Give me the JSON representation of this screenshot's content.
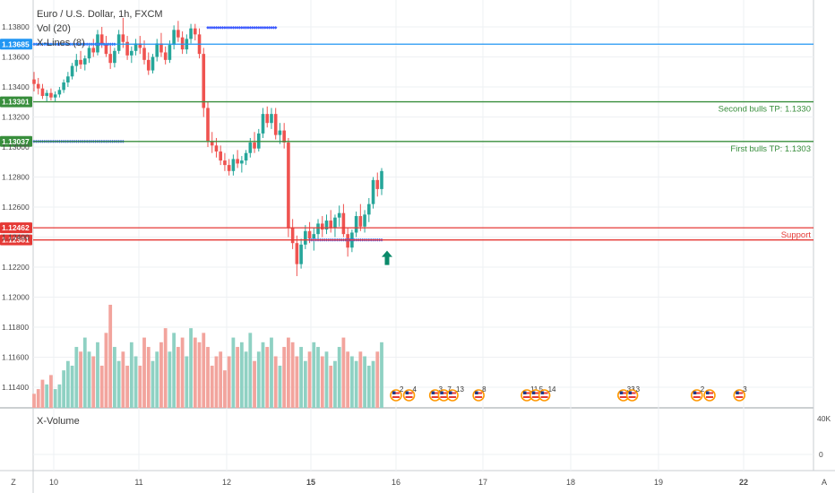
{
  "chart_data": {
    "type": "candlestick",
    "symbol_title": "Euro / U.S. Dollar, 1h, FXCM",
    "indicators": [
      "Vol (20)",
      "X-Lines (8)"
    ],
    "lower_pane_label": "X-Volume",
    "y_ticks": [
      "1.13800",
      "1.13600",
      "1.13400",
      "1.13200",
      "1.13000",
      "1.12800",
      "1.12600",
      "1.12400",
      "1.12200",
      "1.12000",
      "1.11800",
      "1.11600",
      "1.11400"
    ],
    "ylim": [
      1.1125,
      1.1387
    ],
    "lower_ticks": [
      "40K",
      "0"
    ],
    "x_ticks": [
      {
        "label": "10",
        "bold": false
      },
      {
        "label": "11",
        "bold": false
      },
      {
        "label": "12",
        "bold": false
      },
      {
        "label": "15",
        "bold": true
      },
      {
        "label": "16",
        "bold": false
      },
      {
        "label": "17",
        "bold": false
      },
      {
        "label": "18",
        "bold": false
      },
      {
        "label": "19",
        "bold": false
      },
      {
        "label": "22",
        "bold": true
      }
    ],
    "price_lines": [
      {
        "price": 1.13685,
        "badge": "1.13685",
        "color": "#2196f3",
        "label": ""
      },
      {
        "price": 1.13301,
        "badge": "1.13301",
        "color": "#388e3c",
        "label": "Second bulls TP: 1.1330"
      },
      {
        "price": 1.13037,
        "badge": "1.13037",
        "color": "#388e3c",
        "label": "First bulls TP: 1.1303"
      },
      {
        "price": 1.12462,
        "badge": "1.12462",
        "color": "#e53935",
        "label": "Support"
      },
      {
        "price": 1.12381,
        "badge": "1.12381",
        "color": "#e53935",
        "label": ""
      }
    ],
    "candles": [
      [
        1.1345,
        1.135,
        1.1337,
        1.1342
      ],
      [
        1.1342,
        1.1346,
        1.1335,
        1.1339
      ],
      [
        1.1339,
        1.1342,
        1.1332,
        1.1334
      ],
      [
        1.1334,
        1.1338,
        1.133,
        1.1336
      ],
      [
        1.1336,
        1.1339,
        1.1331,
        1.1333
      ],
      [
        1.1333,
        1.1337,
        1.133,
        1.1335
      ],
      [
        1.1335,
        1.134,
        1.1333,
        1.1338
      ],
      [
        1.1338,
        1.1345,
        1.1336,
        1.1343
      ],
      [
        1.1343,
        1.135,
        1.134,
        1.1347
      ],
      [
        1.1347,
        1.1356,
        1.1345,
        1.1354
      ],
      [
        1.1354,
        1.1362,
        1.135,
        1.1358
      ],
      [
        1.1358,
        1.1364,
        1.1352,
        1.1355
      ],
      [
        1.1355,
        1.1361,
        1.1351,
        1.1359
      ],
      [
        1.1359,
        1.1369,
        1.1356,
        1.1366
      ],
      [
        1.1366,
        1.1372,
        1.136,
        1.1363
      ],
      [
        1.1363,
        1.1378,
        1.1361,
        1.1375
      ],
      [
        1.1375,
        1.138,
        1.1366,
        1.1369
      ],
      [
        1.1369,
        1.1374,
        1.136,
        1.1362
      ],
      [
        1.1362,
        1.1368,
        1.1352,
        1.1356
      ],
      [
        1.1356,
        1.1366,
        1.1353,
        1.1364
      ],
      [
        1.1364,
        1.1378,
        1.1362,
        1.1375
      ],
      [
        1.1375,
        1.1386,
        1.1366,
        1.137
      ],
      [
        1.137,
        1.1374,
        1.1358,
        1.1361
      ],
      [
        1.1361,
        1.1367,
        1.1356,
        1.1364
      ],
      [
        1.1364,
        1.1372,
        1.1361,
        1.1369
      ],
      [
        1.1369,
        1.1374,
        1.1362,
        1.1366
      ],
      [
        1.1366,
        1.1371,
        1.1355,
        1.1358
      ],
      [
        1.1358,
        1.1363,
        1.1348,
        1.1351
      ],
      [
        1.1351,
        1.1362,
        1.1349,
        1.136
      ],
      [
        1.136,
        1.1372,
        1.1357,
        1.1369
      ],
      [
        1.1369,
        1.1376,
        1.136,
        1.1363
      ],
      [
        1.1363,
        1.1367,
        1.1355,
        1.1358
      ],
      [
        1.1358,
        1.1371,
        1.1356,
        1.1368
      ],
      [
        1.1368,
        1.1381,
        1.1365,
        1.1378
      ],
      [
        1.1378,
        1.1384,
        1.137,
        1.1373
      ],
      [
        1.1373,
        1.1377,
        1.1362,
        1.1365
      ],
      [
        1.1365,
        1.1375,
        1.1362,
        1.1372
      ],
      [
        1.1372,
        1.1382,
        1.1369,
        1.1379
      ],
      [
        1.1379,
        1.1382,
        1.1371,
        1.1375
      ],
      [
        1.1375,
        1.1379,
        1.1359,
        1.1362
      ],
      [
        1.1362,
        1.1366,
        1.132,
        1.1326
      ],
      [
        1.1326,
        1.133,
        1.13,
        1.1304
      ],
      [
        1.1304,
        1.131,
        1.1296,
        1.1301
      ],
      [
        1.1301,
        1.1306,
        1.1293,
        1.1297
      ],
      [
        1.1297,
        1.1301,
        1.1288,
        1.1291
      ],
      [
        1.1291,
        1.1296,
        1.1284,
        1.1288
      ],
      [
        1.1288,
        1.1292,
        1.1281,
        1.1284
      ],
      [
        1.1284,
        1.1295,
        1.1281,
        1.1292
      ],
      [
        1.1292,
        1.1298,
        1.1286,
        1.1289
      ],
      [
        1.1289,
        1.1294,
        1.1283,
        1.1291
      ],
      [
        1.1291,
        1.1298,
        1.1288,
        1.1296
      ],
      [
        1.1296,
        1.1306,
        1.1293,
        1.1303
      ],
      [
        1.1303,
        1.131,
        1.1296,
        1.1299
      ],
      [
        1.1299,
        1.1312,
        1.1297,
        1.1309
      ],
      [
        1.1309,
        1.1326,
        1.1306,
        1.1322
      ],
      [
        1.1322,
        1.1327,
        1.1313,
        1.1316
      ],
      [
        1.1316,
        1.1326,
        1.1312,
        1.1322
      ],
      [
        1.1322,
        1.1326,
        1.1305,
        1.1308
      ],
      [
        1.1308,
        1.1316,
        1.1302,
        1.1311
      ],
      [
        1.1311,
        1.1316,
        1.1299,
        1.1303
      ],
      [
        1.1303,
        1.1306,
        1.124,
        1.1246
      ],
      [
        1.1246,
        1.1252,
        1.1232,
        1.1236
      ],
      [
        1.1236,
        1.1241,
        1.1214,
        1.1222
      ],
      [
        1.1222,
        1.1239,
        1.1219,
        1.1235
      ],
      [
        1.1235,
        1.1248,
        1.1232,
        1.1244
      ],
      [
        1.1244,
        1.125,
        1.1236,
        1.1239
      ],
      [
        1.1239,
        1.1246,
        1.1231,
        1.1242
      ],
      [
        1.1242,
        1.1252,
        1.1238,
        1.1249
      ],
      [
        1.1249,
        1.1254,
        1.124,
        1.1245
      ],
      [
        1.1245,
        1.1255,
        1.1242,
        1.1251
      ],
      [
        1.1251,
        1.1258,
        1.1243,
        1.1246
      ],
      [
        1.1246,
        1.1255,
        1.124,
        1.1253
      ],
      [
        1.1253,
        1.1261,
        1.1247,
        1.1256
      ],
      [
        1.1256,
        1.1262,
        1.124,
        1.1242
      ],
      [
        1.1242,
        1.1246,
        1.1227,
        1.1233
      ],
      [
        1.1233,
        1.1245,
        1.123,
        1.1243
      ],
      [
        1.1243,
        1.1257,
        1.124,
        1.1254
      ],
      [
        1.1254,
        1.1262,
        1.1244,
        1.1247
      ],
      [
        1.1247,
        1.1258,
        1.1243,
        1.1255
      ],
      [
        1.1255,
        1.1266,
        1.125,
        1.1262
      ],
      [
        1.1262,
        1.128,
        1.1259,
        1.1278
      ],
      [
        1.1278,
        1.1283,
        1.1267,
        1.1272
      ],
      [
        1.1272,
        1.1286,
        1.1268,
        1.1284
      ]
    ],
    "volumes": [
      3,
      4,
      6,
      5,
      7,
      4,
      5,
      8,
      10,
      9,
      13,
      12,
      15,
      12,
      11,
      14,
      9,
      16,
      22,
      13,
      10,
      12,
      9,
      14,
      11,
      9,
      15,
      13,
      10,
      12,
      14,
      17,
      12,
      16,
      13,
      15,
      11,
      17,
      15,
      14,
      16,
      13,
      9,
      11,
      12,
      8,
      11,
      15,
      13,
      14,
      12,
      16,
      10,
      12,
      14,
      13,
      15,
      11,
      9,
      13,
      15,
      14,
      11,
      13,
      10,
      12,
      14,
      13,
      11,
      12,
      9,
      10,
      13,
      15,
      12,
      11,
      10,
      12,
      11,
      9,
      10,
      12,
      14
    ],
    "volume_scale_max": 22,
    "current_arrow": {
      "candle_index": 82,
      "price": 1.1225,
      "color": "#0b8a6a"
    },
    "dotted_series": [
      {
        "from_index": 41,
        "to_index": 57,
        "price": 1.13795
      },
      {
        "from_index": 0,
        "to_index": 19,
        "price": 1.13685
      },
      {
        "from_index": 0,
        "to_index": 21,
        "price": 1.13037
      },
      {
        "from_index": 65,
        "to_index": 82,
        "price": 1.12381
      }
    ],
    "events": [
      {
        "x_day": 16.0,
        "num": "2"
      },
      {
        "x_day": 16.15,
        "num": "4"
      },
      {
        "x_day": 16.45,
        "num": "3"
      },
      {
        "x_day": 16.55,
        "num": "7"
      },
      {
        "x_day": 16.65,
        "num": "13"
      },
      {
        "x_day": 16.95,
        "num": "8"
      },
      {
        "x_day": 17.5,
        "num": "11"
      },
      {
        "x_day": 17.6,
        "num": "5"
      },
      {
        "x_day": 17.7,
        "num": "14"
      },
      {
        "x_day": 18.6,
        "num": "33"
      },
      {
        "x_day": 18.7,
        "num": "3"
      },
      {
        "x_day": 19.45,
        "num": "2"
      },
      {
        "x_day": 19.6,
        "num": ""
      },
      {
        "x_day": 19.95,
        "num": "3"
      }
    ],
    "corner_labels": {
      "left": "Z",
      "right": "A"
    },
    "colors": {
      "up": "#26a69a",
      "down": "#ef5350",
      "vol_up": "#8fd1c3",
      "vol_down": "#f2a49d",
      "grid": "#eef0f3",
      "axis_text": "#4a4a4a",
      "arrow": "#0b8a6a"
    }
  }
}
